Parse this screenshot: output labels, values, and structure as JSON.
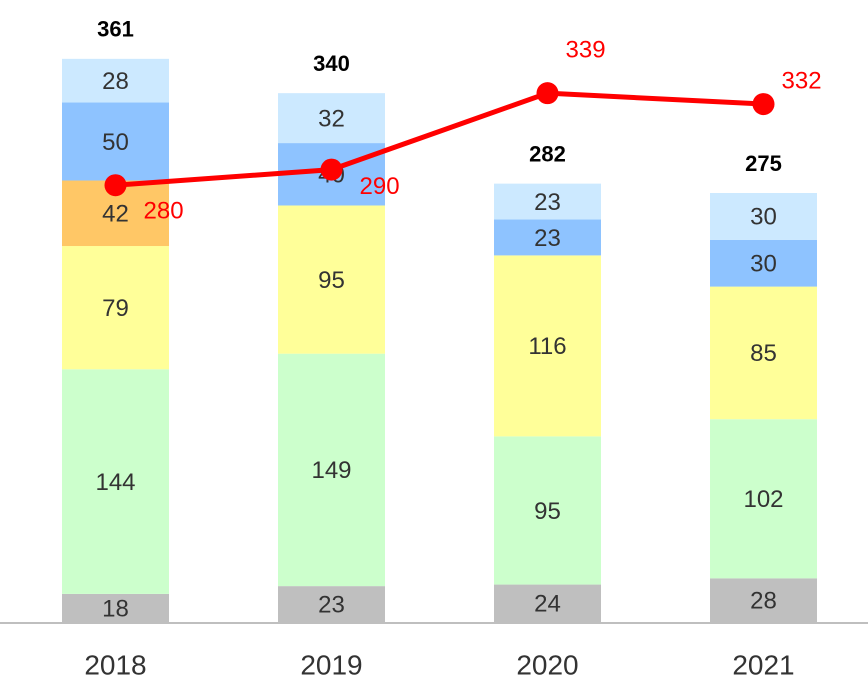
{
  "chart_data": {
    "type": "stacked_bar_line",
    "categories": [
      "2018",
      "2019",
      "2020",
      "2021"
    ],
    "series": [
      {
        "name": null,
        "color": "#bfbfbf",
        "values": [
          18,
          23,
          24,
          28
        ]
      },
      {
        "name": null,
        "color": "#ccffcc",
        "values": [
          144,
          149,
          95,
          102
        ]
      },
      {
        "name": null,
        "color": "#ffff99",
        "values": [
          79,
          95,
          116,
          85
        ]
      },
      {
        "name": null,
        "color": "#ffc766",
        "values": [
          42,
          null,
          null,
          null
        ]
      },
      {
        "name": null,
        "color": "#8ec3ff",
        "values": [
          50,
          40,
          23,
          30
        ]
      },
      {
        "name": null,
        "color": "#cce9ff",
        "values": [
          28,
          32,
          23,
          30
        ]
      }
    ],
    "totals": [
      361,
      340,
      282,
      275
    ],
    "line": {
      "color": "#ff0000",
      "values": [
        280,
        290,
        339,
        332
      ]
    },
    "ylim": [
      0,
      400
    ]
  }
}
